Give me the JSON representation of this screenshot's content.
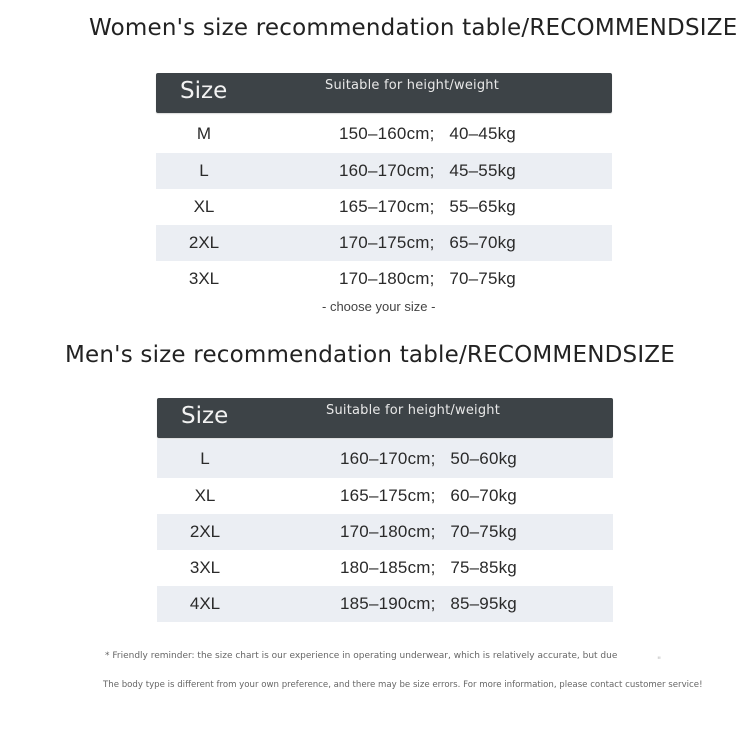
{
  "women": {
    "title": "Women's size recommendation table/RECOMMENDSIZE",
    "header": {
      "size": "Size",
      "suitable": "Suitable for height/weight"
    },
    "rows": [
      {
        "size": "M",
        "hw": "150–160cm;   40–45kg"
      },
      {
        "size": "L",
        "hw": "160–170cm;   45–55kg"
      },
      {
        "size": "XL",
        "hw": "165–170cm;   55–65kg"
      },
      {
        "size": "2XL",
        "hw": "170–175cm;   65–70kg"
      },
      {
        "size": "3XL",
        "hw": "170–180cm;   70–75kg"
      }
    ],
    "choose": "- choose your size -"
  },
  "men": {
    "title": "Men's size recommendation table/RECOMMENDSIZE",
    "header": {
      "size": "Size",
      "suitable": "Suitable for height/weight"
    },
    "rows": [
      {
        "size": "L",
        "hw": "160–170cm;   50–60kg"
      },
      {
        "size": "XL",
        "hw": "165–175cm;   60–70kg"
      },
      {
        "size": "2XL",
        "hw": "170–180cm;   70–75kg"
      },
      {
        "size": "3XL",
        "hw": "180–185cm;   75–85kg"
      },
      {
        "size": "4XL",
        "hw": "185–190cm;   85–95kg"
      }
    ]
  },
  "notes": {
    "line1": "* Friendly reminder: the size chart is our experience in operating underwear, which is relatively accurate, but due",
    "line2": "The body type is different from your own preference, and there may be size errors. For more information, please contact customer service!",
    "mark": "\""
  },
  "colors": {
    "header_bg": "#3d4347",
    "alt_row_bg": "#ebeef3"
  }
}
